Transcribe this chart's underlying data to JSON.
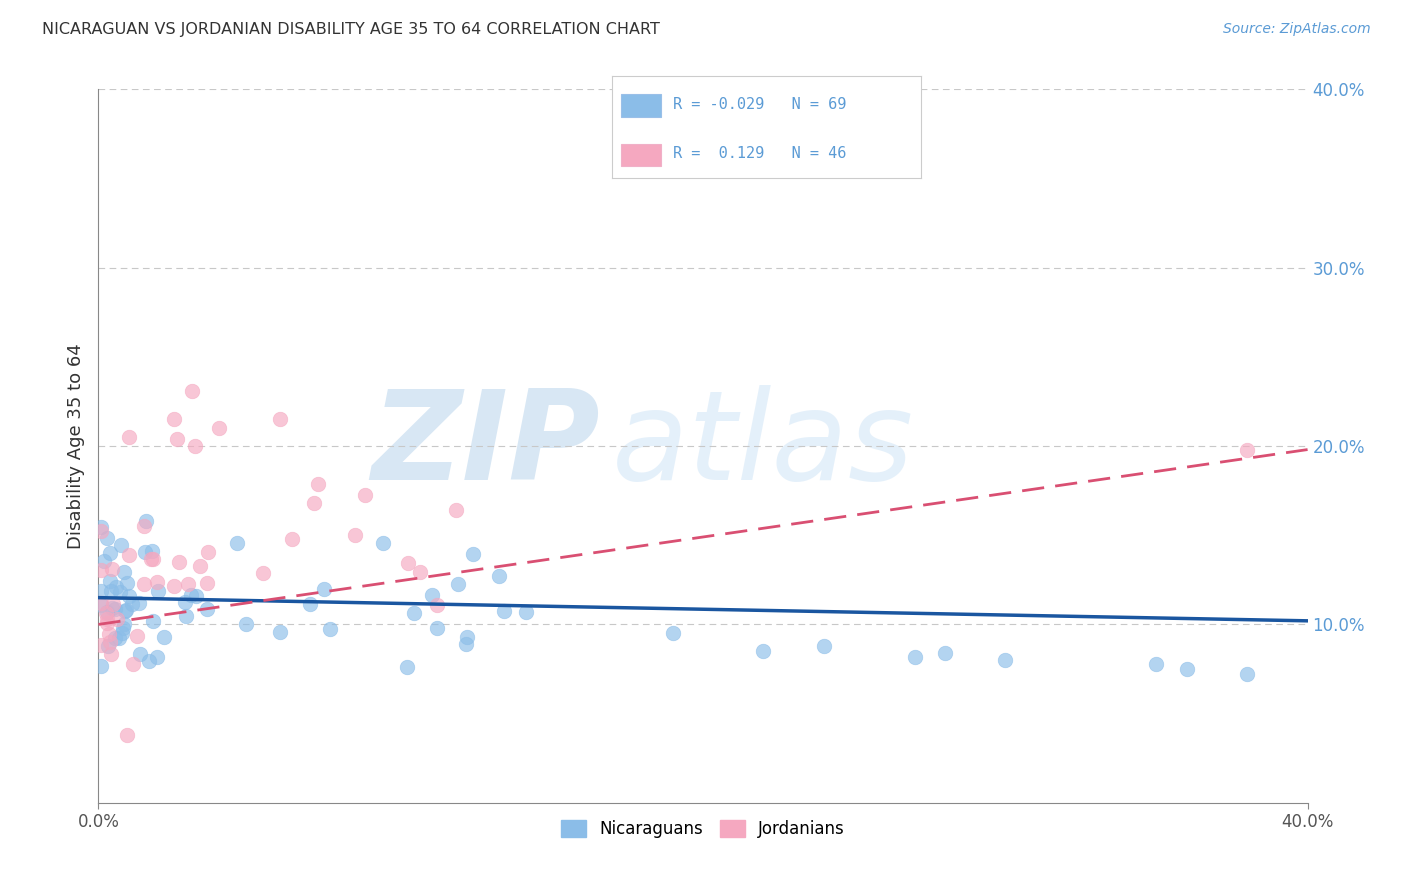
{
  "title": "NICARAGUAN VS JORDANIAN DISABILITY AGE 35 TO 64 CORRELATION CHART",
  "source": "Source: ZipAtlas.com",
  "ylabel": "Disability Age 35 to 64",
  "xlim": [
    0.0,
    0.4
  ],
  "ylim": [
    0.0,
    0.4
  ],
  "nicaraguan_color": "#8BBDE8",
  "jordanian_color": "#F5A8C0",
  "nicaraguan_line_color": "#1A56A0",
  "jordanian_line_color": "#D94F72",
  "background_color": "#ffffff",
  "grid_color": "#c8c8c8",
  "ytick_color": "#5B9BD5",
  "title_color": "#333333",
  "source_color": "#5B9BD5",
  "legend_text_color": "#5B9BD5",
  "watermark_zip_color": "#b8d8ee",
  "watermark_atlas_color": "#c8e0f0",
  "nic_line_x0": 0.0,
  "nic_line_y0": 0.115,
  "nic_line_x1": 0.4,
  "nic_line_y1": 0.102,
  "jor_line_x0": 0.0,
  "jor_line_y0": 0.1,
  "jor_line_x1": 0.4,
  "jor_line_y1": 0.198
}
